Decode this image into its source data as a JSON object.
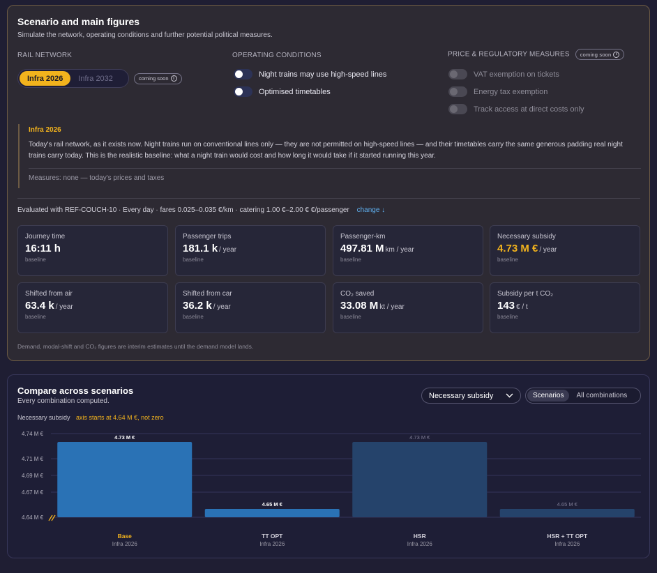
{
  "scenario": {
    "title": "Scenario and main figures",
    "subtitle": "Simulate the network, operating conditions and further potential political measures.",
    "rail_network": {
      "heading": "RAIL NETWORK",
      "options": [
        "Infra 2026",
        "Infra 2032"
      ],
      "selected": "Infra 2026",
      "coming_soon": "coming soon"
    },
    "operating_conditions": {
      "heading": "OPERATING CONDITIONS",
      "toggles": [
        {
          "label": "Night trains may use high-speed lines",
          "on": false
        },
        {
          "label": "Optimised timetables",
          "on": false
        }
      ]
    },
    "price_measures": {
      "heading": "PRICE & REGULATORY MEASURES",
      "coming_soon": "coming soon",
      "toggles": [
        {
          "label": "VAT exemption on tickets",
          "on": false,
          "disabled": true
        },
        {
          "label": "Energy tax exemption",
          "on": false,
          "disabled": true
        },
        {
          "label": "Track access at direct costs only",
          "on": false,
          "disabled": true
        }
      ]
    },
    "explanation": {
      "title": "Infra 2026",
      "body": "Today's rail network, as it exists now. Night trains run on conventional lines only — they are not permitted on high-speed lines — and their timetables carry the same generous padding real night trains carry today. This is the realistic baseline: what a night train would cost and how long it would take if it started running this year.",
      "measures": "Measures: none — today's prices and taxes"
    },
    "evaluated": "Evaluated with REF-COUCH-10 · Every day · fares 0.025–0.035 €/km · catering 1.00 €–2.00 € €/passenger",
    "change_link": "change ↓",
    "metrics": [
      {
        "label": "Journey time",
        "value": "16:11 h",
        "unit": "",
        "note": "baseline"
      },
      {
        "label": "Passenger trips",
        "value": "181.1 k",
        "unit": "/ year",
        "note": "baseline"
      },
      {
        "label": "Passenger-km",
        "value": "497.81 M",
        "unit": "km / year",
        "note": "baseline"
      },
      {
        "label": "Necessary subsidy",
        "value": "4.73 M €",
        "unit": "/ year",
        "note": "baseline",
        "accent": true
      },
      {
        "label": "Shifted from air",
        "value": "63.4 k",
        "unit": "/ year",
        "note": "baseline"
      },
      {
        "label": "Shifted from car",
        "value": "36.2 k",
        "unit": "/ year",
        "note": "baseline"
      },
      {
        "label": "CO₂ saved",
        "value": "33.08 M",
        "unit": "kt / year",
        "note": "baseline"
      },
      {
        "label": "Subsidy per t CO₂",
        "value": "143",
        "unit": "€ / t",
        "note": "baseline"
      }
    ],
    "footnote": "Demand, modal-shift and CO₂ figures are interim estimates until the demand model lands."
  },
  "compare": {
    "title": "Compare across scenarios",
    "subtitle": "Every combination computed.",
    "metric_select": "Necessary subsidy",
    "views": [
      "Scenarios",
      "All combinations"
    ],
    "active_view": "Scenarios",
    "axis_label": "Necessary subsidy",
    "axis_warning": "axis starts at 4.64 M €, not zero"
  },
  "chart_data": {
    "type": "bar",
    "ylabel": "Necessary subsidy",
    "ylim": [
      4.64,
      4.74
    ],
    "yticks": [
      4.64,
      4.67,
      4.69,
      4.71,
      4.74
    ],
    "ytick_labels": [
      "4.64 M €",
      "4.67 M €",
      "4.69 M €",
      "4.71 M €",
      "4.74 M €"
    ],
    "categories": [
      {
        "name": "Base",
        "sub": "Infra 2026",
        "value": 4.73,
        "label": "4.73 M €",
        "active": true
      },
      {
        "name": "TT OPT",
        "sub": "Infra 2026",
        "value": 4.65,
        "label": "4.65 M €",
        "active": true
      },
      {
        "name": "HSR",
        "sub": "Infra 2026",
        "value": 4.73,
        "label": "4.73 M €",
        "active": false
      },
      {
        "name": "HSR + TT OPT",
        "sub": "Infra 2026",
        "value": 4.65,
        "label": "4.65 M €",
        "active": false
      }
    ],
    "grid": true,
    "colors": {
      "active": "#2a72b5",
      "inactive": "#25436b",
      "highlight": "#f2b31d"
    }
  }
}
